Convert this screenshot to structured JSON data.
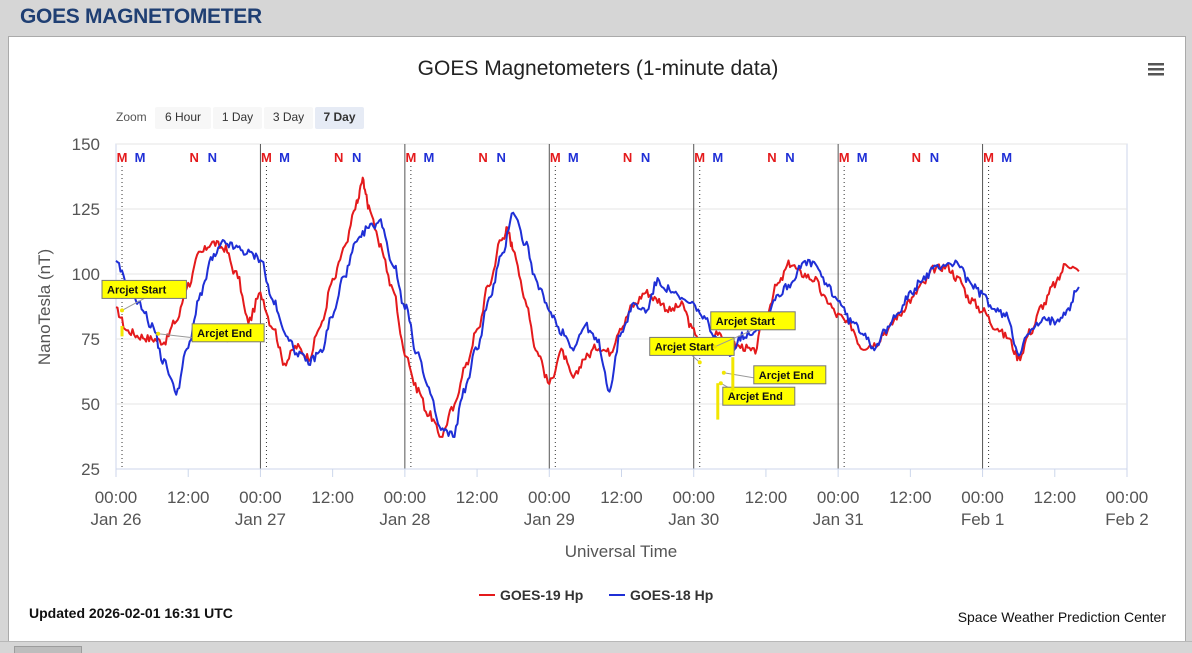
{
  "page": {
    "heading": "GOES MAGNETOMETER"
  },
  "colors": {
    "goes19": "#e41a1c",
    "goes18": "#1f2fd6",
    "heading": "#1f3f73",
    "arcjet_fill": "#ffff00",
    "arcjet_line": "#f2e600"
  },
  "icons": {
    "menu": "hamburger-menu-icon"
  },
  "chart_data": {
    "type": "line",
    "title": "GOES Magnetometers (1-minute data)",
    "xlabel": "Universal Time",
    "ylabel": "NanoTesla (nT)",
    "ylim": [
      25,
      150
    ],
    "yticks": [
      "150",
      "125",
      "100",
      "75",
      "50",
      "25"
    ],
    "xlim": [
      "2026-01-26 00:00",
      "2026-02-02 00:00"
    ],
    "xticks": [
      {
        "t": "00:00",
        "d": "Jan 26"
      },
      {
        "t": "12:00",
        "d": ""
      },
      {
        "t": "00:00",
        "d": "Jan 27"
      },
      {
        "t": "12:00",
        "d": ""
      },
      {
        "t": "00:00",
        "d": "Jan 28"
      },
      {
        "t": "12:00",
        "d": ""
      },
      {
        "t": "00:00",
        "d": "Jan 29"
      },
      {
        "t": "12:00",
        "d": ""
      },
      {
        "t": "00:00",
        "d": "Jan 30"
      },
      {
        "t": "12:00",
        "d": ""
      },
      {
        "t": "00:00",
        "d": "Jan 31"
      },
      {
        "t": "12:00",
        "d": ""
      },
      {
        "t": "00:00",
        "d": "Feb 1"
      },
      {
        "t": "12:00",
        "d": ""
      },
      {
        "t": "00:00",
        "d": "Feb 2"
      }
    ],
    "grid": true,
    "legend_position": "bottom-center",
    "series": [
      {
        "name": "GOES-19 Hp",
        "color": "#e41a1c",
        "points": [
          [
            "2026-01-26 00:00",
            86
          ],
          [
            "2026-01-26 02:00",
            78
          ],
          [
            "2026-01-26 04:00",
            76
          ],
          [
            "2026-01-26 06:00",
            75
          ],
          [
            "2026-01-26 08:00",
            74
          ],
          [
            "2026-01-26 10:00",
            82
          ],
          [
            "2026-01-26 12:00",
            96
          ],
          [
            "2026-01-26 14:00",
            108
          ],
          [
            "2026-01-26 16:00",
            112
          ],
          [
            "2026-01-26 18:00",
            110
          ],
          [
            "2026-01-26 20:00",
            100
          ],
          [
            "2026-01-26 22:00",
            82
          ],
          [
            "2026-01-27 00:00",
            92
          ],
          [
            "2026-01-27 02:00",
            80
          ],
          [
            "2026-01-27 04:00",
            66
          ],
          [
            "2026-01-27 06:00",
            72
          ],
          [
            "2026-01-27 08:00",
            68
          ],
          [
            "2026-01-27 10:00",
            80
          ],
          [
            "2026-01-27 12:00",
            97
          ],
          [
            "2026-01-27 14:00",
            110
          ],
          [
            "2026-01-27 16:00",
            127
          ],
          [
            "2026-01-27 17:00",
            136
          ],
          [
            "2026-01-27 18:00",
            126
          ],
          [
            "2026-01-27 20:00",
            110
          ],
          [
            "2026-01-27 22:00",
            94
          ],
          [
            "2026-01-28 00:00",
            70
          ],
          [
            "2026-01-28 02:00",
            56
          ],
          [
            "2026-01-28 04:00",
            46
          ],
          [
            "2026-01-28 06:00",
            38
          ],
          [
            "2026-01-28 08:00",
            48
          ],
          [
            "2026-01-28 10:00",
            64
          ],
          [
            "2026-01-28 12:00",
            78
          ],
          [
            "2026-01-28 14:00",
            96
          ],
          [
            "2026-01-28 16:00",
            113
          ],
          [
            "2026-01-28 17:00",
            117
          ],
          [
            "2026-01-28 18:00",
            110
          ],
          [
            "2026-01-28 20:00",
            90
          ],
          [
            "2026-01-28 22:00",
            70
          ],
          [
            "2026-01-29 00:00",
            58
          ],
          [
            "2026-01-29 02:00",
            70
          ],
          [
            "2026-01-29 04:00",
            60
          ],
          [
            "2026-01-29 06:00",
            68
          ],
          [
            "2026-01-29 08:00",
            72
          ],
          [
            "2026-01-29 10:00",
            70
          ],
          [
            "2026-01-29 12:00",
            80
          ],
          [
            "2026-01-29 14:00",
            88
          ],
          [
            "2026-01-29 16:00",
            93
          ],
          [
            "2026-01-29 18:00",
            90
          ],
          [
            "2026-01-29 20:00",
            86
          ],
          [
            "2026-01-29 22:00",
            88
          ],
          [
            "2026-01-30 00:00",
            78
          ],
          [
            "2026-01-30 02:00",
            70
          ],
          [
            "2026-01-30 04:00",
            78
          ],
          [
            "2026-01-30 06:00",
            73
          ],
          [
            "2026-01-30 08:00",
            72
          ],
          [
            "2026-01-30 10:00",
            70
          ],
          [
            "2026-01-30 12:00",
            85
          ],
          [
            "2026-01-30 14:00",
            96
          ],
          [
            "2026-01-30 16:00",
            104
          ],
          [
            "2026-01-30 18:00",
            100
          ],
          [
            "2026-01-30 20:00",
            98
          ],
          [
            "2026-01-30 22:00",
            90
          ],
          [
            "2026-01-31 00:00",
            84
          ],
          [
            "2026-01-31 02:00",
            80
          ],
          [
            "2026-01-31 04:00",
            72
          ],
          [
            "2026-01-31 06:00",
            73
          ],
          [
            "2026-01-31 08:00",
            78
          ],
          [
            "2026-01-31 10:00",
            84
          ],
          [
            "2026-01-31 12:00",
            90
          ],
          [
            "2026-01-31 14:00",
            96
          ],
          [
            "2026-01-31 16:00",
            102
          ],
          [
            "2026-01-31 18:00",
            103
          ],
          [
            "2026-01-31 20:00",
            98
          ],
          [
            "2026-01-31 22:00",
            90
          ],
          [
            "2026-02-01 00:00",
            86
          ],
          [
            "2026-02-01 02:00",
            80
          ],
          [
            "2026-02-01 04:00",
            76
          ],
          [
            "2026-02-01 06:00",
            68
          ],
          [
            "2026-02-01 08:00",
            78
          ],
          [
            "2026-02-01 10:00",
            88
          ],
          [
            "2026-02-01 12:00",
            96
          ],
          [
            "2026-02-01 14:00",
            104
          ],
          [
            "2026-02-01 16:00",
            101
          ]
        ]
      },
      {
        "name": "GOES-18 Hp",
        "color": "#1f2fd6",
        "points": [
          [
            "2026-01-26 00:00",
            104
          ],
          [
            "2026-01-26 02:00",
            96
          ],
          [
            "2026-01-26 04:00",
            88
          ],
          [
            "2026-01-26 06:00",
            80
          ],
          [
            "2026-01-26 08:00",
            66
          ],
          [
            "2026-01-26 10:00",
            55
          ],
          [
            "2026-01-26 12:00",
            72
          ],
          [
            "2026-01-26 14:00",
            92
          ],
          [
            "2026-01-26 16:00",
            106
          ],
          [
            "2026-01-26 18:00",
            112
          ],
          [
            "2026-01-26 20:00",
            110
          ],
          [
            "2026-01-26 22:00",
            108
          ],
          [
            "2026-01-27 00:00",
            106
          ],
          [
            "2026-01-27 02:00",
            90
          ],
          [
            "2026-01-27 04:00",
            78
          ],
          [
            "2026-01-27 06:00",
            70
          ],
          [
            "2026-01-27 08:00",
            66
          ],
          [
            "2026-01-27 10:00",
            70
          ],
          [
            "2026-01-27 12:00",
            84
          ],
          [
            "2026-01-27 14:00",
            100
          ],
          [
            "2026-01-27 16:00",
            112
          ],
          [
            "2026-01-27 18:00",
            118
          ],
          [
            "2026-01-27 20:00",
            120
          ],
          [
            "2026-01-27 22:00",
            104
          ],
          [
            "2026-01-28 00:00",
            88
          ],
          [
            "2026-01-28 02:00",
            70
          ],
          [
            "2026-01-28 04:00",
            55
          ],
          [
            "2026-01-28 06:00",
            40
          ],
          [
            "2026-01-28 08:00",
            38
          ],
          [
            "2026-01-28 10:00",
            56
          ],
          [
            "2026-01-28 12:00",
            72
          ],
          [
            "2026-01-28 14:00",
            90
          ],
          [
            "2026-01-28 16:00",
            106
          ],
          [
            "2026-01-28 18:00",
            124
          ],
          [
            "2026-01-28 20:00",
            112
          ],
          [
            "2026-01-28 22:00",
            96
          ],
          [
            "2026-01-29 00:00",
            86
          ],
          [
            "2026-01-29 02:00",
            78
          ],
          [
            "2026-01-29 04:00",
            72
          ],
          [
            "2026-01-29 06:00",
            80
          ],
          [
            "2026-01-29 08:00",
            74
          ],
          [
            "2026-01-29 10:00",
            56
          ],
          [
            "2026-01-29 12:00",
            78
          ],
          [
            "2026-01-29 14:00",
            88
          ],
          [
            "2026-01-29 16:00",
            86
          ],
          [
            "2026-01-29 18:00",
            97
          ],
          [
            "2026-01-29 20:00",
            94
          ],
          [
            "2026-01-29 22:00",
            90
          ],
          [
            "2026-01-30 00:00",
            88
          ],
          [
            "2026-01-30 02:00",
            82
          ],
          [
            "2026-01-30 04:00",
            74
          ],
          [
            "2026-01-30 06:00",
            70
          ],
          [
            "2026-01-30 08:00",
            76
          ],
          [
            "2026-01-30 10:00",
            78
          ],
          [
            "2026-01-30 12:00",
            84
          ],
          [
            "2026-01-30 14:00",
            92
          ],
          [
            "2026-01-30 16:00",
            96
          ],
          [
            "2026-01-30 18:00",
            104
          ],
          [
            "2026-01-30 20:00",
            104
          ],
          [
            "2026-01-30 22:00",
            96
          ],
          [
            "2026-01-31 00:00",
            90
          ],
          [
            "2026-01-31 02:00",
            82
          ],
          [
            "2026-01-31 04:00",
            78
          ],
          [
            "2026-01-31 06:00",
            72
          ],
          [
            "2026-01-31 08:00",
            78
          ],
          [
            "2026-01-31 10:00",
            86
          ],
          [
            "2026-01-31 12:00",
            92
          ],
          [
            "2026-01-31 14:00",
            98
          ],
          [
            "2026-01-31 16:00",
            102
          ],
          [
            "2026-01-31 18:00",
            104
          ],
          [
            "2026-01-31 20:00",
            104
          ],
          [
            "2026-01-31 22:00",
            96
          ],
          [
            "2026-02-01 00:00",
            92
          ],
          [
            "2026-02-01 02:00",
            86
          ],
          [
            "2026-02-01 04:00",
            84
          ],
          [
            "2026-02-01 06:00",
            70
          ],
          [
            "2026-02-01 08:00",
            78
          ],
          [
            "2026-02-01 10:00",
            82
          ],
          [
            "2026-02-01 12:00",
            82
          ],
          [
            "2026-02-01 14:00",
            86
          ],
          [
            "2026-02-01 16:00",
            95
          ]
        ]
      }
    ],
    "annotations": [
      {
        "text": "Arcjet Start",
        "time": "2026-01-26 01:00",
        "value": 86
      },
      {
        "text": "Arcjet End",
        "time": "2026-01-26 07:00",
        "value": 77
      },
      {
        "text": "Arcjet Start",
        "time": "2026-01-30 01:00",
        "value": 66
      },
      {
        "text": "Arcjet Start",
        "time": "2026-01-30 03:30",
        "value": 72
      },
      {
        "text": "Arcjet End",
        "time": "2026-01-30 05:00",
        "value": 62
      },
      {
        "text": "Arcjet End",
        "time": "2026-01-30 04:30",
        "value": 58
      }
    ],
    "markers": [
      {
        "label": "M",
        "time": "2026-01-26 01:00",
        "color": "#e41a1c"
      },
      {
        "label": "M",
        "time": "2026-01-26 04:00",
        "color": "#1f2fd6"
      },
      {
        "label": "N",
        "time": "2026-01-26 13:00",
        "color": "#e41a1c"
      },
      {
        "label": "N",
        "time": "2026-01-26 16:00",
        "color": "#1f2fd6"
      },
      {
        "label": "M",
        "time": "2026-01-27 01:00",
        "color": "#e41a1c"
      },
      {
        "label": "M",
        "time": "2026-01-27 04:00",
        "color": "#1f2fd6"
      },
      {
        "label": "N",
        "time": "2026-01-27 13:00",
        "color": "#e41a1c"
      },
      {
        "label": "N",
        "time": "2026-01-27 16:00",
        "color": "#1f2fd6"
      },
      {
        "label": "M",
        "time": "2026-01-28 01:00",
        "color": "#e41a1c"
      },
      {
        "label": "M",
        "time": "2026-01-28 04:00",
        "color": "#1f2fd6"
      },
      {
        "label": "N",
        "time": "2026-01-28 13:00",
        "color": "#e41a1c"
      },
      {
        "label": "N",
        "time": "2026-01-28 16:00",
        "color": "#1f2fd6"
      },
      {
        "label": "M",
        "time": "2026-01-29 01:00",
        "color": "#e41a1c"
      },
      {
        "label": "M",
        "time": "2026-01-29 04:00",
        "color": "#1f2fd6"
      },
      {
        "label": "N",
        "time": "2026-01-29 13:00",
        "color": "#e41a1c"
      },
      {
        "label": "N",
        "time": "2026-01-29 16:00",
        "color": "#1f2fd6"
      },
      {
        "label": "M",
        "time": "2026-01-30 01:00",
        "color": "#e41a1c"
      },
      {
        "label": "M",
        "time": "2026-01-30 04:00",
        "color": "#1f2fd6"
      },
      {
        "label": "N",
        "time": "2026-01-30 13:00",
        "color": "#e41a1c"
      },
      {
        "label": "N",
        "time": "2026-01-30 16:00",
        "color": "#1f2fd6"
      },
      {
        "label": "M",
        "time": "2026-01-31 01:00",
        "color": "#e41a1c"
      },
      {
        "label": "M",
        "time": "2026-01-31 04:00",
        "color": "#1f2fd6"
      },
      {
        "label": "N",
        "time": "2026-01-31 13:00",
        "color": "#e41a1c"
      },
      {
        "label": "N",
        "time": "2026-01-31 16:00",
        "color": "#1f2fd6"
      },
      {
        "label": "M",
        "time": "2026-02-01 01:00",
        "color": "#e41a1c"
      },
      {
        "label": "M",
        "time": "2026-02-01 04:00",
        "color": "#1f2fd6"
      }
    ]
  },
  "zoom": {
    "label": "Zoom",
    "buttons": [
      {
        "label": "6 Hour",
        "selected": false
      },
      {
        "label": "1 Day",
        "selected": false
      },
      {
        "label": "3 Day",
        "selected": false
      },
      {
        "label": "7 Day",
        "selected": true
      }
    ]
  },
  "footer": {
    "updated": "Updated 2026-02-01 16:31 UTC",
    "credit": "Space Weather Prediction Center"
  }
}
